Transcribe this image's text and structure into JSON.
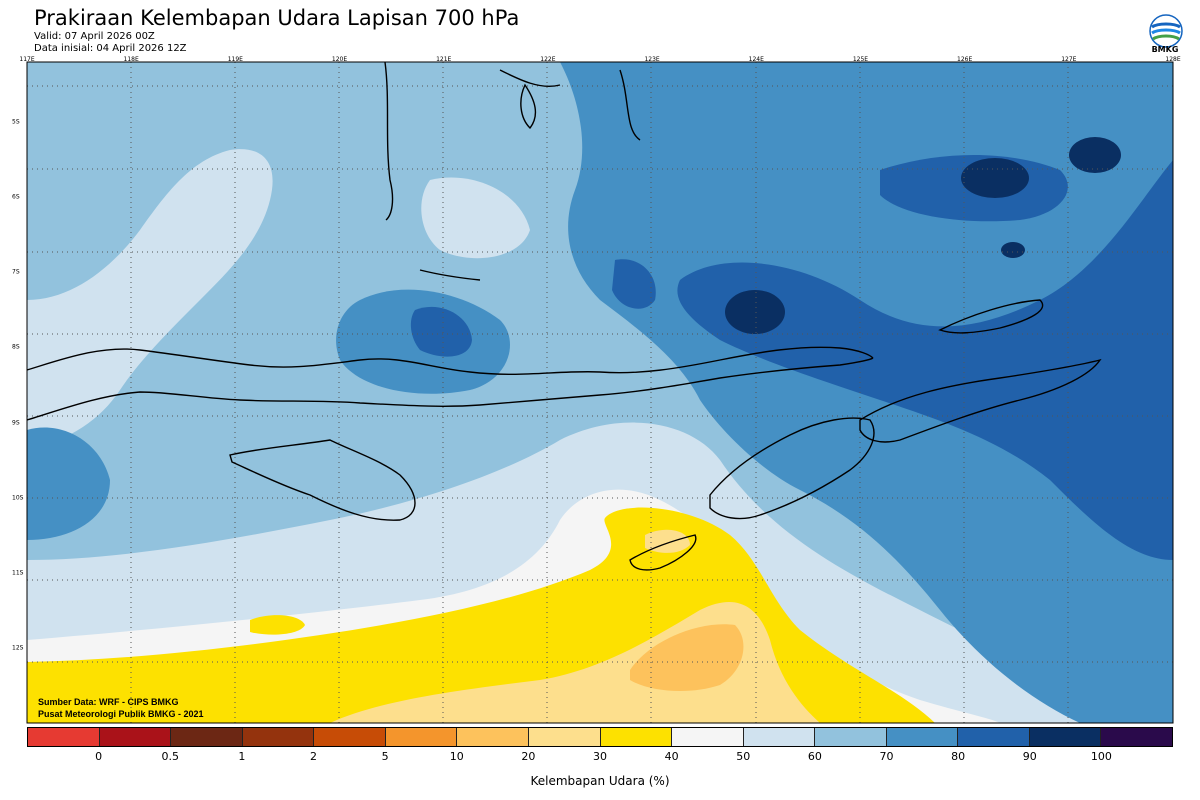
{
  "header": {
    "title": "Prakiraan Kelembapan Udara Lapisan 700 hPa",
    "valid": "Valid: 07 April 2026 00Z",
    "init": "Data inisial: 04 April 2026 12Z"
  },
  "logo": {
    "icon": "bmkg-logo",
    "text": "BMKG"
  },
  "map": {
    "lon_labels": [
      "117E",
      "118E",
      "119E",
      "120E",
      "121E",
      "122E",
      "123E",
      "124E",
      "125E",
      "126E",
      "127E",
      "128E"
    ],
    "lat_labels": [
      "5S",
      "6S",
      "7S",
      "8S",
      "9S",
      "10S",
      "11S",
      "12S"
    ],
    "lon_range": [
      117,
      128
    ],
    "lat_range": [
      -4.2,
      -13.0
    ],
    "grid": "dotted"
  },
  "footer": {
    "source": "Sumber Data: WRF - CIPS BMKG",
    "org": "Pusat Meteorologi Publik BMKG - 2021"
  },
  "colorbar": {
    "title": "Kelembapan Udara (%)",
    "labels": [
      "0",
      "0.5",
      "1",
      "2",
      "5",
      "10",
      "20",
      "30",
      "40",
      "50",
      "60",
      "70",
      "80",
      "90",
      "100"
    ],
    "colors": [
      "#e63a32",
      "#aa1219",
      "#6c2714",
      "#94330d",
      "#c74c06",
      "#f4952c",
      "#fdc25c",
      "#fddf8d",
      "#fde100",
      "#f5f5f5",
      "#d0e2ef",
      "#92c2dd",
      "#4590c4",
      "#2161aa",
      "#0a2f62",
      "#2a0a4b"
    ]
  },
  "legend_colors": {
    "lt40": "#fbcc6c",
    "b40_50": "#fde100",
    "b50_60": "#f5f5f5",
    "b60_70": "#d0e2ef",
    "b70_80": "#92c2dd",
    "b80_90": "#4590c4",
    "b90_100": "#2161aa",
    "gt100": "#0a2f62"
  }
}
